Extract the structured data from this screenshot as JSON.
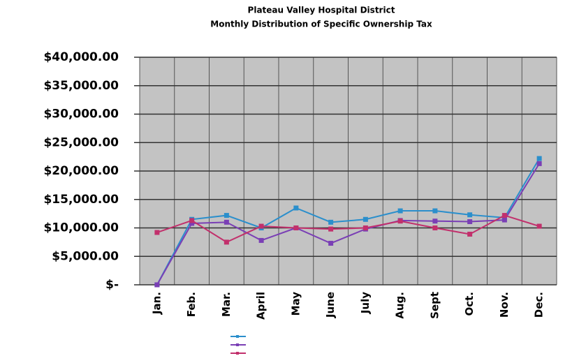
{
  "chart_data": {
    "type": "line",
    "title": "Plateau Valley Hospital District",
    "subtitle": "Monthly Distribution of Specific Ownership Tax",
    "categories": [
      "Jan.",
      "Feb.",
      "Mar.",
      "April",
      "May",
      "June",
      "July",
      "Aug.",
      "Sept",
      "Oct.",
      "Nov.",
      "Dec."
    ],
    "series": [
      {
        "color": "#2b8fcc",
        "values": [
          0,
          11500,
          12200,
          10000,
          13500,
          11000,
          11500,
          13000,
          13000,
          12300,
          11800,
          22200
        ]
      },
      {
        "color": "#7a3fb5",
        "values": [
          0,
          10800,
          11000,
          7800,
          10000,
          7300,
          9800,
          11300,
          11200,
          11100,
          11400,
          21300
        ]
      },
      {
        "color": "#c2306c",
        "values": [
          9200,
          11300,
          7500,
          10300,
          10000,
          9800,
          10000,
          11200,
          10000,
          8900,
          12200,
          10300
        ]
      }
    ],
    "ylim": [
      0,
      40000
    ],
    "yticks": [
      {
        "value": 0,
        "label": "$-"
      },
      {
        "value": 5000,
        "label": "$5,000.00"
      },
      {
        "value": 10000,
        "label": "$10,000.00"
      },
      {
        "value": 15000,
        "label": "$15,000.00"
      },
      {
        "value": 20000,
        "label": "$20,000.00"
      },
      {
        "value": 25000,
        "label": "$25,000.00"
      },
      {
        "value": 30000,
        "label": "$30,000.00"
      },
      {
        "value": 35000,
        "label": "$35,000.00"
      },
      {
        "value": 40000,
        "label": "$40,000.00"
      }
    ],
    "grid": true
  }
}
